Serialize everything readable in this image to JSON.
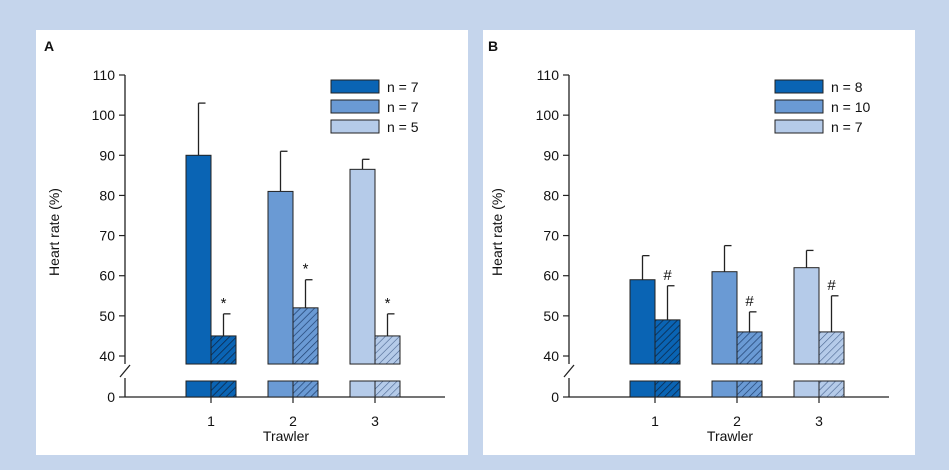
{
  "chart_data": [
    {
      "type": "bar",
      "panel_label": "A",
      "xlabel": "Trawler",
      "ylabel": "Heart rate (%)",
      "categories": [
        "1",
        "2",
        "3"
      ],
      "y_ticks": [
        "0",
        "40",
        "50",
        "60",
        "70",
        "80",
        "90",
        "100",
        "110"
      ],
      "ylim": [
        0,
        110
      ],
      "axis_break": [
        0,
        38
      ],
      "legend": [
        "n = 7",
        "n = 7",
        "n = 5"
      ],
      "legend_position": "top-right",
      "series": [
        {
          "pattern": "solid",
          "values": [
            90,
            81,
            86.5
          ],
          "errors": [
            13,
            10,
            2.5
          ],
          "marks": [
            "",
            "",
            ""
          ]
        },
        {
          "pattern": "hatched",
          "values": [
            45,
            52,
            45
          ],
          "errors": [
            5.5,
            7,
            5.5
          ],
          "marks": [
            "*",
            "*",
            "*"
          ]
        }
      ],
      "colors": [
        "#0a64b4",
        "#6a9ad4",
        "#b5cbe9"
      ]
    },
    {
      "type": "bar",
      "panel_label": "B",
      "xlabel": "Trawler",
      "ylabel": "Heart rate (%)",
      "categories": [
        "1",
        "2",
        "3"
      ],
      "y_ticks": [
        "0",
        "40",
        "50",
        "60",
        "70",
        "80",
        "90",
        "100",
        "110"
      ],
      "ylim": [
        0,
        110
      ],
      "axis_break": [
        0,
        38
      ],
      "legend": [
        "n = 8",
        "n = 10",
        "n = 7"
      ],
      "legend_position": "top-right",
      "series": [
        {
          "pattern": "solid",
          "values": [
            59,
            61,
            62
          ],
          "errors": [
            6,
            6.5,
            4.3
          ],
          "marks": [
            "",
            "",
            ""
          ]
        },
        {
          "pattern": "hatched",
          "values": [
            49,
            46,
            46
          ],
          "errors": [
            8.5,
            5,
            9
          ],
          "marks": [
            "#",
            "#",
            "#"
          ]
        }
      ],
      "colors": [
        "#0a64b4",
        "#6a9ad4",
        "#b5cbe9"
      ]
    }
  ]
}
